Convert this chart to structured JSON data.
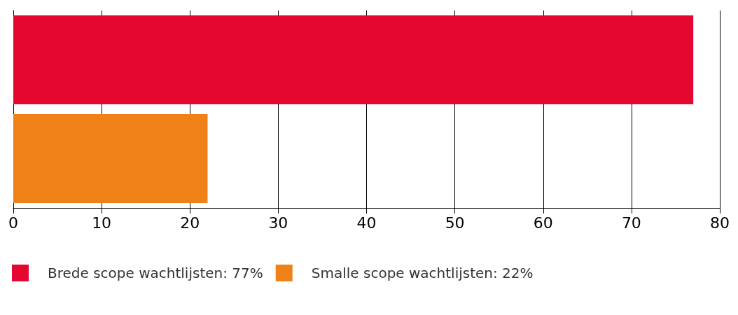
{
  "chart_data": {
    "type": "bar",
    "orientation": "horizontal",
    "categories": [
      null,
      null
    ],
    "series": [
      {
        "name": "Brede scope wachtlijsten: 77%",
        "color": "#e4072f",
        "values": [
          77,
          null
        ]
      },
      {
        "name": "Smalle scope wachtlijsten: 22%",
        "color": "#f08018",
        "values": [
          null,
          22
        ]
      }
    ],
    "xlim": [
      0,
      80
    ],
    "xticks": [
      0,
      10,
      20,
      30,
      40,
      50,
      60,
      70,
      80
    ],
    "grid": "x",
    "legend": "bottom left"
  }
}
